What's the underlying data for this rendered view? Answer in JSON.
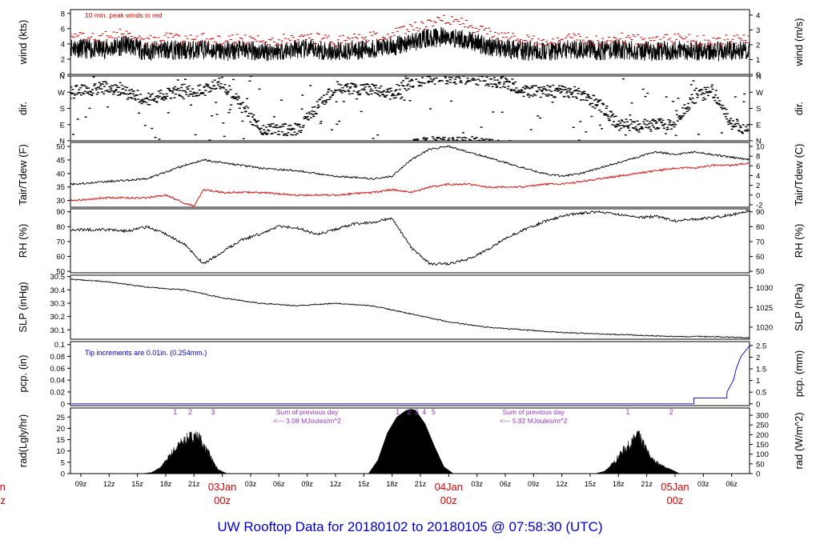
{
  "footer_title": "UW Rooftop Data for 20180102  to  20180105 @ 07:58:30  (UTC)",
  "colors": {
    "main": "#000000",
    "secondary": "#e00000",
    "annotation_blue": "#0000cc",
    "annotation_purple": "#9933cc",
    "date_label": "#dd0000",
    "title": "#0000cc"
  },
  "x_axis": {
    "hours_span": 72,
    "start_hour_utc": 7.9,
    "ticks": [
      {
        "label": "09z",
        "hour": 9
      },
      {
        "label": "12z",
        "hour": 12
      },
      {
        "label": "15z",
        "hour": 15
      },
      {
        "label": "18z",
        "hour": 18
      },
      {
        "label": "21z",
        "hour": 21
      },
      {
        "label": "03z",
        "hour": 27
      },
      {
        "label": "06z",
        "hour": 30
      },
      {
        "label": "09z",
        "hour": 33
      },
      {
        "label": "12z",
        "hour": 36
      },
      {
        "label": "15z",
        "hour": 39
      },
      {
        "label": "18z",
        "hour": 42
      },
      {
        "label": "21z",
        "hour": 45
      },
      {
        "label": "03z",
        "hour": 51
      },
      {
        "label": "06z",
        "hour": 54
      },
      {
        "label": "09z",
        "hour": 57
      },
      {
        "label": "12z",
        "hour": 60
      },
      {
        "label": "15z",
        "hour": 63
      },
      {
        "label": "18z",
        "hour": 66
      },
      {
        "label": "21z",
        "hour": 69
      },
      {
        "label": "03z",
        "hour": 75
      },
      {
        "label": "06z",
        "hour": 78
      }
    ],
    "date_labels": [
      {
        "date": "03Jan",
        "time": "00z",
        "hour": 24
      },
      {
        "date": "04Jan",
        "time": "00z",
        "hour": 48
      },
      {
        "date": "05Jan",
        "time": "00z",
        "hour": 72
      }
    ],
    "edge_label": {
      "date": "an",
      "time": "z"
    }
  },
  "chart_data": [
    {
      "type": "line",
      "ylabel_left": "wind (kts)",
      "ylabel_right": "wind (m/s)",
      "ylim": [
        0,
        8.5
      ],
      "left_ticks": [
        0,
        2,
        4,
        6,
        8
      ],
      "right_ticks": [
        0,
        1,
        2,
        3,
        4
      ],
      "right_factor": 1.944,
      "annotation": "10 min. peak winds in red",
      "series": [
        {
          "role": "mean",
          "x": [
            8,
            10,
            12,
            14,
            16,
            18,
            20,
            22,
            24,
            26,
            28,
            30,
            32,
            34,
            36,
            38,
            40,
            42,
            44,
            46,
            48,
            50,
            52,
            54,
            56,
            58,
            60,
            62,
            64,
            66,
            68,
            70,
            72,
            74,
            76,
            78,
            80
          ],
          "y": [
            3.6,
            3.3,
            3.4,
            3.9,
            3.0,
            3.3,
            3.1,
            3.3,
            3.0,
            3.2,
            3.0,
            3.1,
            3.3,
            3.2,
            3.0,
            3.2,
            3.4,
            3.6,
            4.2,
            4.8,
            4.9,
            4.5,
            3.8,
            3.4,
            3.1,
            3.0,
            3.1,
            3.4,
            3.0,
            3.3,
            3.1,
            3.0,
            3.2,
            3.1,
            3.0,
            3.1,
            3.2
          ]
        },
        {
          "role": "peak",
          "x": [
            8,
            10,
            12,
            14,
            16,
            18,
            20,
            22,
            24,
            26,
            28,
            30,
            32,
            34,
            36,
            38,
            40,
            42,
            44,
            46,
            48,
            50,
            52,
            54,
            56,
            58,
            60,
            62,
            64,
            66,
            68,
            70,
            72,
            74,
            76,
            78,
            80
          ],
          "y": [
            5.3,
            4.8,
            5.0,
            5.6,
            4.5,
            4.8,
            4.6,
            4.7,
            4.4,
            4.6,
            4.4,
            4.5,
            4.8,
            4.7,
            4.4,
            4.7,
            4.9,
            5.2,
            6.0,
            6.9,
            7.2,
            6.5,
            5.5,
            4.9,
            4.5,
            4.4,
            4.6,
            4.9,
            4.4,
            4.8,
            4.5,
            4.4,
            4.7,
            4.5,
            4.4,
            4.5,
            4.6
          ]
        }
      ]
    },
    {
      "type": "scatter",
      "ylabel_left": "dir.",
      "ylabel_right": "dir.",
      "ylim": [
        0,
        360
      ],
      "left_tick_labels": [
        "N",
        "E",
        "S",
        "W",
        "N"
      ],
      "tick_values": [
        0,
        90,
        180,
        270,
        360
      ],
      "series": [
        {
          "name": "",
          "x": [
            8,
            12,
            16,
            20,
            22,
            24,
            28,
            32,
            36,
            40,
            42,
            44,
            46,
            48,
            50,
            52,
            54,
            56,
            58,
            60,
            62,
            64,
            66,
            68,
            70,
            72,
            74,
            76,
            78,
            80
          ],
          "y": [
            270,
            300,
            230,
            280,
            280,
            320,
            70,
            60,
            300,
            280,
            260,
            330,
            350,
            350,
            350,
            340,
            320,
            280,
            270,
            280,
            260,
            200,
            90,
            80,
            90,
            100,
            240,
            280,
            90,
            70
          ]
        }
      ]
    },
    {
      "type": "line",
      "ylabel_left": "Tair/Tdew (F)",
      "ylabel_right": "Tair/Tdew (C)",
      "ylim": [
        27.5,
        51.5
      ],
      "left_ticks": [
        30,
        35,
        40,
        45,
        50
      ],
      "right_ticks": [
        -2,
        0,
        2,
        4,
        6,
        8,
        10
      ],
      "series": [
        {
          "name": "Tair",
          "x": [
            8,
            12,
            16,
            20,
            22,
            24,
            28,
            32,
            36,
            40,
            42,
            44,
            46,
            48,
            50,
            52,
            54,
            56,
            58,
            60,
            62,
            64,
            66,
            68,
            70,
            72,
            74,
            76,
            78,
            80
          ],
          "y": [
            36,
            37,
            38,
            43,
            45,
            44,
            42,
            41,
            39,
            38,
            39,
            45,
            49,
            50,
            48,
            46,
            44,
            42,
            40,
            39,
            40,
            42,
            44,
            46,
            48,
            47,
            48,
            47,
            46,
            45
          ]
        },
        {
          "name": "Tdew",
          "x": [
            8,
            12,
            16,
            18,
            20,
            21,
            22,
            24,
            28,
            32,
            36,
            40,
            42,
            44,
            46,
            48,
            50,
            52,
            54,
            56,
            58,
            60,
            62,
            64,
            66,
            68,
            70,
            72,
            74,
            76,
            78,
            80
          ],
          "y": [
            30,
            31,
            31,
            32,
            29,
            28,
            34,
            33,
            33,
            32,
            32,
            33,
            34,
            33,
            35,
            36,
            36,
            35,
            35,
            35,
            36,
            36,
            37,
            38,
            39,
            40,
            41,
            42,
            42,
            43,
            43,
            44
          ]
        }
      ]
    },
    {
      "type": "line",
      "ylabel_left": "RH (%)",
      "ylabel_right": "RH (%)",
      "ylim": [
        49,
        92
      ],
      "left_ticks": [
        50,
        60,
        70,
        80,
        90
      ],
      "right_ticks": [
        50,
        60,
        70,
        80,
        90
      ],
      "series": [
        {
          "name": "RH",
          "x": [
            8,
            12,
            14,
            16,
            18,
            20,
            22,
            24,
            26,
            28,
            30,
            32,
            34,
            36,
            38,
            40,
            42,
            44,
            46,
            48,
            50,
            52,
            54,
            56,
            58,
            60,
            62,
            64,
            66,
            68,
            70,
            72,
            74,
            76,
            78,
            80
          ],
          "y": [
            78,
            78,
            77,
            80,
            75,
            68,
            55,
            63,
            71,
            75,
            80,
            79,
            75,
            78,
            82,
            83,
            86,
            66,
            55,
            55,
            58,
            64,
            72,
            78,
            83,
            87,
            89,
            90,
            88,
            86,
            87,
            84,
            85,
            86,
            88,
            91
          ]
        }
      ]
    },
    {
      "type": "line",
      "ylabel_left": "SLP (inHg)",
      "ylabel_right": "SLP (hPa)",
      "ylim": [
        30.03,
        30.51
      ],
      "left_ticks": [
        30.1,
        30.2,
        30.3,
        30.4,
        30.5
      ],
      "right_ticks": [
        1020,
        1025,
        1030
      ],
      "hpa_per_inhg": 33.8639,
      "series": [
        {
          "name": "SLP",
          "x": [
            8,
            12,
            16,
            20,
            24,
            28,
            32,
            36,
            40,
            44,
            48,
            52,
            56,
            60,
            64,
            68,
            72,
            76,
            80
          ],
          "y": [
            30.48,
            30.46,
            30.42,
            30.4,
            30.34,
            30.3,
            30.28,
            30.3,
            30.28,
            30.22,
            30.16,
            30.12,
            30.1,
            30.08,
            30.07,
            30.06,
            30.05,
            30.05,
            30.04
          ]
        }
      ]
    },
    {
      "type": "line",
      "ylabel_left": "pcp. (in)",
      "ylabel_right": "pcp. (mm)",
      "ylim": [
        -0.003,
        0.105
      ],
      "left_ticks": [
        0.0,
        0.02,
        0.04,
        0.06,
        0.08,
        0.1
      ],
      "right_ticks": [
        0,
        0.5,
        1,
        1.5,
        2,
        2.5
      ],
      "annotation": "Tip increments are 0.01in. (0.254mm.)",
      "series": [
        {
          "name": "precip",
          "x": [
            8,
            74,
            74.01,
            77.5,
            77.51,
            78.2,
            78.5,
            79,
            79.5,
            80
          ],
          "y": [
            0,
            0,
            0.01,
            0.01,
            0.02,
            0.04,
            0.06,
            0.08,
            0.09,
            0.1
          ]
        }
      ]
    },
    {
      "type": "area",
      "ylabel_left": "rad(Lgly/hr)",
      "ylabel_right": "rad (W/m^2)",
      "ylim": [
        0,
        29
      ],
      "left_ticks": [
        0,
        5,
        10,
        15,
        20,
        25
      ],
      "right_ticks": [
        0,
        50,
        100,
        150,
        200,
        250,
        300
      ],
      "day_markers": [
        {
          "labels": [
            "1",
            "2",
            "3"
          ],
          "hours": [
            19,
            20.6,
            23
          ]
        },
        {
          "labels": [
            "1",
            "2",
            "3",
            "4",
            "5"
          ],
          "hours": [
            42.6,
            43.8,
            44.6,
            45.4,
            46.4
          ]
        },
        {
          "labels": [
            "1",
            "2"
          ],
          "hours": [
            67,
            71.6
          ]
        }
      ],
      "summaries": [
        {
          "line1": "Sum of previous day",
          "line2": "<--- 3.08 MJoules/m^2",
          "hour": 33
        },
        {
          "line1": "Sum of previous day",
          "line2": "<--- 5.92 MJoules/m^2",
          "hour": 57
        }
      ],
      "series": [
        {
          "name": "radiation",
          "x": [
            15.5,
            16.5,
            17.5,
            18.5,
            19.5,
            20.5,
            21.0,
            21.5,
            22.5,
            23.5,
            24.5,
            39.5,
            40.5,
            41.5,
            42.5,
            43.5,
            44.0,
            44.5,
            45.5,
            46.5,
            47.5,
            48.5,
            63.5,
            64.5,
            65.5,
            66.5,
            67.5,
            68.0,
            68.5,
            69.5,
            70.5,
            71.5,
            72.5
          ],
          "y": [
            0,
            0.5,
            3,
            9,
            14,
            17,
            18,
            17,
            10,
            2,
            0,
            0,
            6,
            18,
            25,
            28,
            28.5,
            28,
            22,
            12,
            3,
            0,
            0,
            1,
            5,
            11,
            15,
            19,
            15,
            7,
            4,
            2,
            0
          ]
        }
      ]
    }
  ]
}
